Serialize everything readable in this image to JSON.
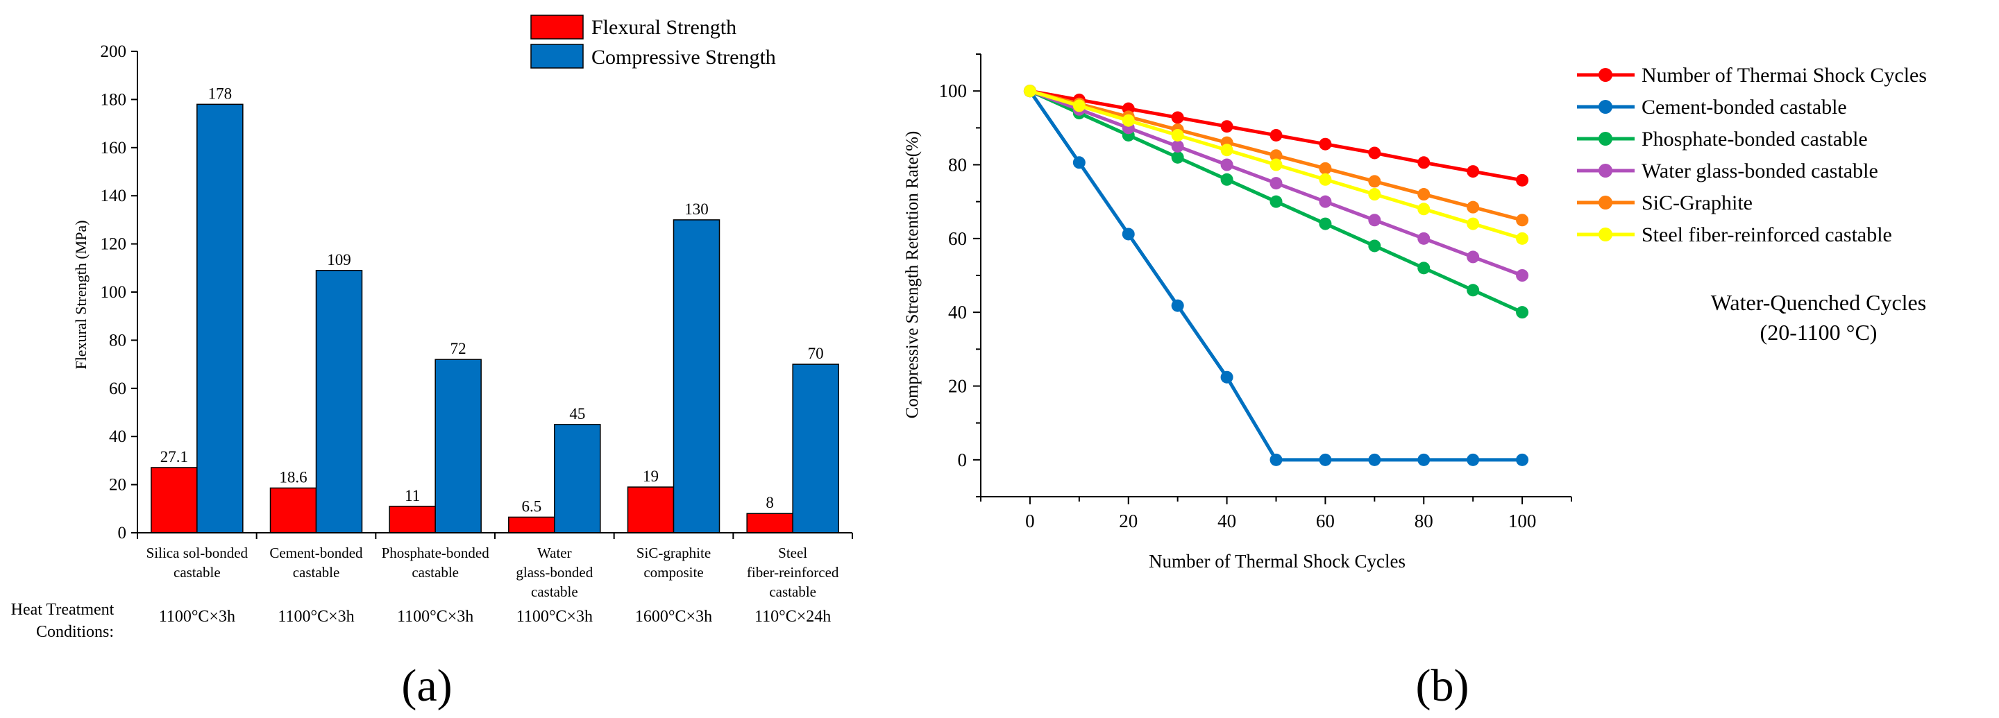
{
  "chart_data": [
    {
      "type": "bar",
      "panel_label": "(a)",
      "title": "",
      "xlabel": "",
      "ylabel": "Flexural Strength (MPa)",
      "ylim": [
        0,
        200
      ],
      "yticks": [
        0,
        20,
        40,
        60,
        80,
        100,
        120,
        140,
        160,
        180,
        200
      ],
      "categories": [
        [
          "Silica sol-bonded",
          "castable"
        ],
        [
          "Cement-bonded",
          "castable"
        ],
        [
          "Phosphate-bonded",
          "castable"
        ],
        [
          "Water",
          "glass-bonded",
          "castable"
        ],
        [
          "SiC-graphite",
          "composite"
        ],
        [
          "Steel",
          "fiber-reinforced",
          "castable"
        ]
      ],
      "series": [
        {
          "name": "Flexural Strength",
          "color": "#ff0000",
          "values": [
            27.1,
            18.6,
            11,
            6.5,
            19,
            8
          ],
          "labels": [
            "27.1",
            "18.6",
            "11",
            "6.5",
            "19",
            "8"
          ]
        },
        {
          "name": "Compressive Strength",
          "color": "#0070c0",
          "values": [
            178,
            109,
            72,
            45,
            130,
            70
          ],
          "labels": [
            "178",
            "109",
            "72",
            "45",
            "130",
            "70"
          ]
        }
      ],
      "heat_treatment": {
        "label_lines": [
          "Heat Treatment",
          "Conditions:"
        ],
        "values": [
          "1100°C×3h",
          "1100°C×3h",
          "1100°C×3h",
          "1100°C×3h",
          "1600°C×3h",
          "110°C×24h"
        ]
      },
      "legend": "top-right",
      "grid": false
    },
    {
      "type": "line",
      "panel_label": "(b)",
      "title": "",
      "xlabel": "Number of Thermal Shock Cycles",
      "ylabel": "Compressive Strength Retention Rate(%)",
      "xlim": [
        -10,
        110
      ],
      "ylim": [
        -10,
        110
      ],
      "xticks": [
        0,
        20,
        40,
        60,
        80,
        100
      ],
      "yticks": [
        0,
        20,
        40,
        60,
        80,
        100
      ],
      "x": [
        0,
        10,
        20,
        30,
        40,
        50,
        60,
        70,
        80,
        90,
        100
      ],
      "series": [
        {
          "name": "Number of Thermai Shock Cycles",
          "color": "#ff0000",
          "values": [
            100,
            97.6,
            95.2,
            92.8,
            90.4,
            88,
            85.6,
            83.2,
            80.6,
            78.2,
            75.8
          ]
        },
        {
          "name": "Cement-bonded castable",
          "color": "#0070c0",
          "values": [
            100,
            80.6,
            61.2,
            41.8,
            22.4,
            0,
            0,
            0,
            0,
            0,
            0
          ]
        },
        {
          "name": "Phosphate-bonded castable",
          "color": "#00b050",
          "values": [
            100,
            94,
            88,
            82,
            76,
            70,
            64,
            58,
            52,
            46,
            40
          ]
        },
        {
          "name": "Water glass-bonded castable",
          "color": "#b04fbb",
          "values": [
            100,
            95,
            90,
            85,
            80,
            75,
            70,
            65,
            60,
            55,
            50
          ]
        },
        {
          "name": "SiC-Graphite",
          "color": "#ff7f0e",
          "values": [
            100,
            96.5,
            93,
            89.5,
            86,
            82.5,
            79,
            75.5,
            72,
            68.5,
            65
          ]
        },
        {
          "name": "Steel fiber-reinforced castable",
          "color": "#ffff00",
          "values": [
            100,
            96,
            92,
            88,
            84,
            80,
            76,
            72,
            68,
            64,
            60
          ]
        }
      ],
      "annotation": [
        "Water-Quenched Cycles",
        "(20-1100 °C)"
      ],
      "legend": "top-right",
      "grid": false
    }
  ]
}
